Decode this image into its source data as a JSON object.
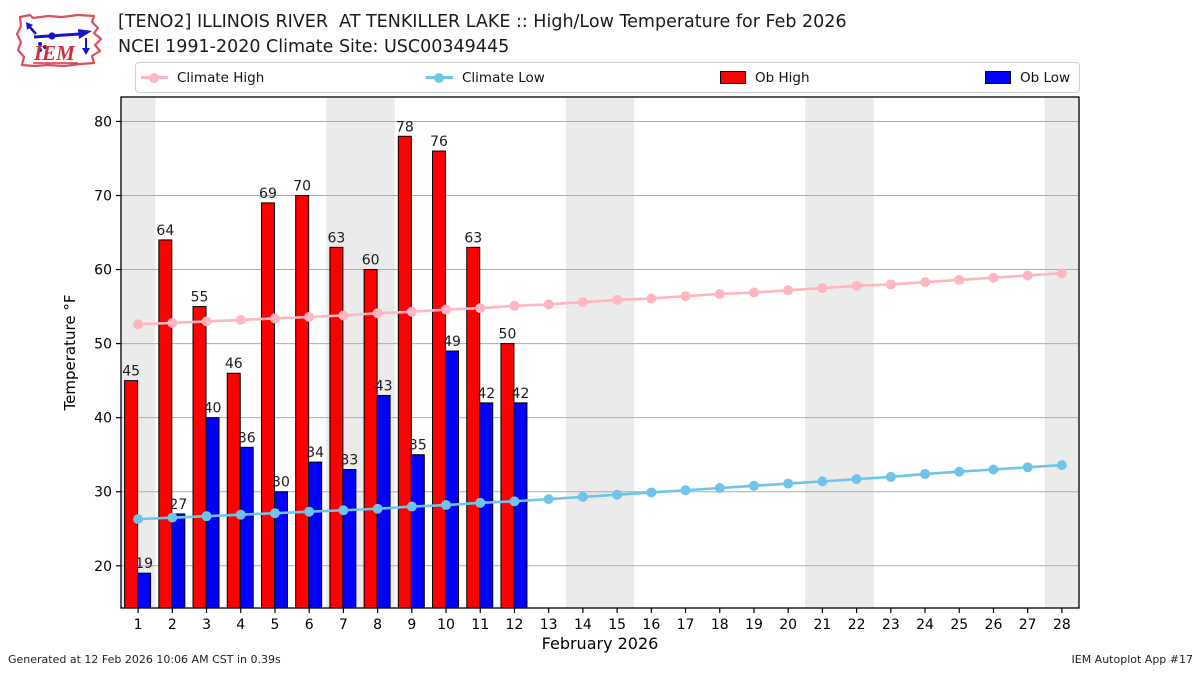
{
  "header": {
    "title_line1": "[TENO2] ILLINOIS RIVER  AT TENKILLER LAKE :: High/Low Temperature for Feb 2026",
    "title_line2": "NCEI 1991-2020 Climate Site: USC00349445",
    "logo_text": "IEM"
  },
  "legend": {
    "items": [
      {
        "label": "Climate High",
        "marker": "line-dot",
        "color": "#FFB6C1"
      },
      {
        "label": "Climate Low",
        "marker": "line-dot",
        "color": "#6EC5E9"
      },
      {
        "label": "Ob High",
        "marker": "box",
        "color": "#FF0000"
      },
      {
        "label": "Ob Low",
        "marker": "box",
        "color": "#0000FF"
      }
    ]
  },
  "footer": {
    "left": "Generated at 12 Feb 2026 10:06 AM CST in 0.39s",
    "right": "IEM Autoplot App #17"
  },
  "chart_data": {
    "type": "bar",
    "title": "[TENO2] ILLINOIS RIVER  AT TENKILLER LAKE :: High/Low Temperature for Feb 2026",
    "subtitle": "NCEI 1991-2020 Climate Site: USC00349445",
    "xlabel": "February 2026",
    "ylabel": "Temperature °F",
    "x_days": [
      1,
      2,
      3,
      4,
      5,
      6,
      7,
      8,
      9,
      10,
      11,
      12,
      13,
      14,
      15,
      16,
      17,
      18,
      19,
      20,
      21,
      22,
      23,
      24,
      25,
      26,
      27,
      28
    ],
    "ylim": [
      14.3,
      83.3
    ],
    "yticks": [
      20,
      30,
      40,
      50,
      60,
      70,
      80
    ],
    "grid": "horizontal",
    "grid_color": "#ABABAB",
    "weekend_shading_days": [
      1,
      7,
      8,
      14,
      15,
      21,
      22,
      28
    ],
    "weekend_shading_color": "#EBEBEB",
    "bar_value_labels": true,
    "series": [
      {
        "name": "Ob High",
        "type": "bar",
        "color": "#FF0000",
        "days": [
          1,
          2,
          3,
          4,
          5,
          6,
          7,
          8,
          9,
          10,
          11,
          12
        ],
        "values": [
          45,
          64,
          55,
          46,
          69,
          70,
          63,
          60,
          78,
          76,
          63,
          50
        ]
      },
      {
        "name": "Ob Low",
        "type": "bar",
        "color": "#0000FF",
        "days": [
          1,
          2,
          3,
          4,
          5,
          6,
          7,
          8,
          9,
          10,
          11,
          12
        ],
        "values": [
          19,
          27,
          40,
          36,
          30,
          34,
          33,
          43,
          35,
          49,
          42,
          42
        ]
      },
      {
        "name": "Climate High",
        "type": "line",
        "color": "#FFB6C1",
        "days": [
          1,
          2,
          3,
          4,
          5,
          6,
          7,
          8,
          9,
          10,
          11,
          12,
          13,
          14,
          15,
          16,
          17,
          18,
          19,
          20,
          21,
          22,
          23,
          24,
          25,
          26,
          27,
          28
        ],
        "values": [
          52.6,
          52.8,
          53.0,
          53.2,
          53.4,
          53.6,
          53.8,
          54.1,
          54.3,
          54.6,
          54.8,
          55.1,
          55.3,
          55.6,
          55.9,
          56.1,
          56.4,
          56.7,
          56.9,
          57.2,
          57.5,
          57.8,
          58.0,
          58.3,
          58.6,
          58.9,
          59.2,
          59.5
        ]
      },
      {
        "name": "Climate Low",
        "type": "line",
        "color": "#6EC5E9",
        "days": [
          1,
          2,
          3,
          4,
          5,
          6,
          7,
          8,
          9,
          10,
          11,
          12,
          13,
          14,
          15,
          16,
          17,
          18,
          19,
          20,
          21,
          22,
          23,
          24,
          25,
          26,
          27,
          28
        ],
        "values": [
          26.3,
          26.5,
          26.7,
          26.9,
          27.1,
          27.3,
          27.5,
          27.7,
          28.0,
          28.2,
          28.5,
          28.7,
          29.0,
          29.3,
          29.6,
          29.9,
          30.2,
          30.5,
          30.8,
          31.1,
          31.4,
          31.7,
          32.0,
          32.4,
          32.7,
          33.0,
          33.3,
          33.6
        ]
      }
    ]
  }
}
